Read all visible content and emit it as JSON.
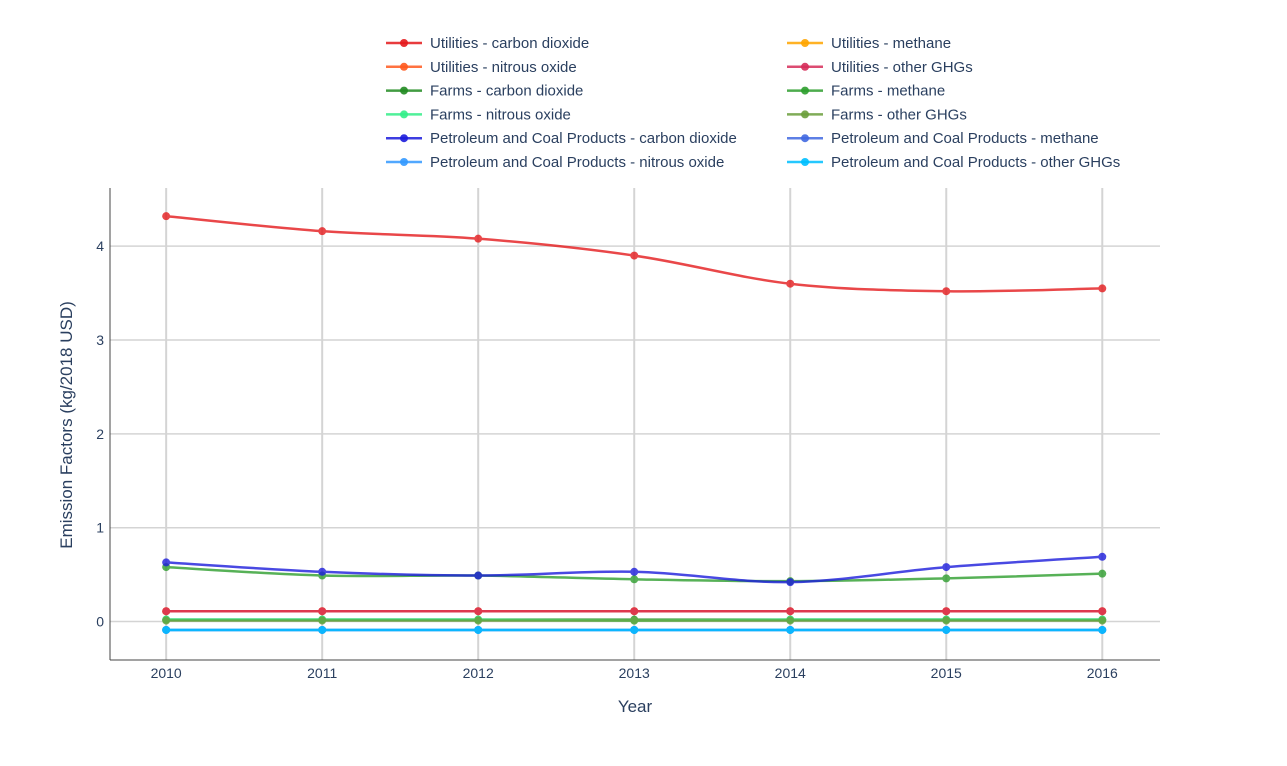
{
  "chart_data": {
    "type": "line",
    "xlabel": "Year",
    "ylabel": "Emission Factors (kg/2018 USD)",
    "x": [
      2010,
      2011,
      2012,
      2013,
      2014,
      2015,
      2016
    ],
    "xlim": [
      2009.64,
      2016.37
    ],
    "ylim": [
      -0.41,
      4.62
    ],
    "y_ticks": [
      0,
      1,
      2,
      3,
      4
    ],
    "grid": true,
    "legend_position": "top",
    "series": [
      {
        "name": "Utilities - carbon dioxide",
        "color": "#e41a1c",
        "values": [
          4.32,
          4.16,
          4.08,
          3.9,
          3.6,
          3.52,
          3.55
        ]
      },
      {
        "name": "Utilities - methane",
        "color": "#ffa500",
        "values": [
          0.11,
          0.11,
          0.11,
          0.11,
          0.11,
          0.11,
          0.11
        ]
      },
      {
        "name": "Utilities - nitrous oxide",
        "color": "#ff5a1f",
        "values": [
          0.11,
          0.11,
          0.11,
          0.11,
          0.11,
          0.11,
          0.11
        ]
      },
      {
        "name": "Utilities - other GHGs",
        "color": "#d62d5a",
        "values": [
          0.11,
          0.11,
          0.11,
          0.11,
          0.11,
          0.11,
          0.11
        ]
      },
      {
        "name": "Farms - carbon dioxide",
        "color": "#228b22",
        "values": [
          0.02,
          0.02,
          0.02,
          0.02,
          0.02,
          0.02,
          0.02
        ]
      },
      {
        "name": "Farms - methane",
        "color": "#2e9e2e",
        "values": [
          0.58,
          0.49,
          0.49,
          0.45,
          0.43,
          0.46,
          0.51
        ]
      },
      {
        "name": "Farms - nitrous oxide",
        "color": "#33ee88",
        "values": [
          0.02,
          0.02,
          0.02,
          0.01,
          0.02,
          0.02,
          0.02
        ]
      },
      {
        "name": "Farms - other GHGs",
        "color": "#6b9e3c",
        "values": [
          0.01,
          0.01,
          0.01,
          0.01,
          0.01,
          0.01,
          0.01
        ]
      },
      {
        "name": "Petroleum and Coal Products - carbon dioxide",
        "color": "#1c1cdc",
        "values": [
          0.63,
          0.53,
          0.49,
          0.53,
          0.42,
          0.58,
          0.69
        ]
      },
      {
        "name": "Petroleum and Coal Products - methane",
        "color": "#4169e1",
        "values": [
          -0.09,
          -0.09,
          -0.09,
          -0.09,
          -0.09,
          -0.09,
          -0.09
        ]
      },
      {
        "name": "Petroleum and Coal Products - nitrous oxide",
        "color": "#3399ff",
        "values": [
          -0.09,
          -0.09,
          -0.09,
          -0.09,
          -0.09,
          -0.09,
          -0.09
        ]
      },
      {
        "name": "Petroleum and Coal Products - other GHGs",
        "color": "#00bfff",
        "values": [
          -0.09,
          -0.09,
          -0.09,
          -0.09,
          -0.09,
          -0.09,
          -0.09
        ]
      }
    ]
  }
}
